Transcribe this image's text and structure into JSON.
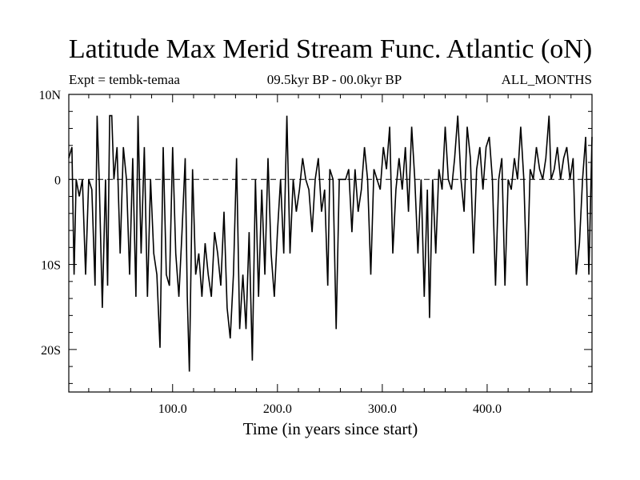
{
  "chart_data": {
    "type": "line",
    "title": "Latitude Max Merid Stream Func. Atlantic (oN)",
    "subtitle_left": "Expt = tembk-temaa",
    "subtitle_center": "09.5kyr BP - 00.0kyr BP",
    "subtitle_right": "ALL_MONTHS",
    "xlabel": "Time (in years since start)",
    "ylabel": "",
    "xlim": [
      1,
      500
    ],
    "ylim": [
      -25,
      10
    ],
    "xticks": [
      {
        "value": 100,
        "label": "100.0"
      },
      {
        "value": 200,
        "label": "200.0"
      },
      {
        "value": 300,
        "label": "300.0"
      },
      {
        "value": 400,
        "label": "400.0"
      }
    ],
    "yticks": [
      {
        "value": 10,
        "label": "10N"
      },
      {
        "value": 0,
        "label": "0"
      },
      {
        "value": -10,
        "label": "10S"
      },
      {
        "value": -20,
        "label": "20S"
      }
    ],
    "reference_line": {
      "value": 0,
      "style": "dashed"
    },
    "series": [
      {
        "name": "latitude_max",
        "x": [
          1,
          4,
          6,
          8,
          11,
          14,
          17,
          20,
          23,
          26,
          28,
          30,
          33,
          36,
          38,
          40,
          42,
          44,
          47,
          50,
          53,
          56,
          59,
          62,
          65,
          67,
          70,
          73,
          76,
          79,
          82,
          85,
          88,
          91,
          94,
          97,
          100,
          103,
          106,
          109,
          112,
          114,
          116,
          119,
          122,
          125,
          128,
          131,
          134,
          137,
          140,
          143,
          146,
          149,
          152,
          155,
          158,
          161,
          164,
          167,
          170,
          173,
          176,
          179,
          182,
          185,
          188,
          191,
          194,
          197,
          200,
          203,
          206,
          209,
          212,
          215,
          218,
          221,
          224,
          227,
          230,
          233,
          236,
          239,
          242,
          245,
          248,
          250,
          253,
          256,
          259,
          262,
          265,
          268,
          271,
          274,
          277,
          280,
          283,
          286,
          289,
          292,
          295,
          298,
          301,
          304,
          307,
          310,
          313,
          316,
          319,
          322,
          325,
          328,
          331,
          334,
          337,
          340,
          343,
          345,
          348,
          351,
          354,
          357,
          360,
          363,
          366,
          369,
          372,
          375,
          378,
          381,
          384,
          387,
          390,
          393,
          396,
          399,
          402,
          405,
          408,
          411,
          414,
          417,
          420,
          423,
          426,
          429,
          432,
          435,
          438,
          441,
          444,
          447,
          450,
          453,
          456,
          459,
          461,
          464,
          467,
          470,
          473,
          476,
          479,
          482,
          485,
          488,
          491,
          494,
          497,
          500
        ],
        "y": [
          2.5,
          3.8,
          -11.2,
          0,
          -2,
          0,
          -11.2,
          0,
          -1.2,
          -12.5,
          7.5,
          0,
          -15.1,
          0,
          -12.5,
          7.5,
          7.5,
          0,
          3.8,
          -8.7,
          3.8,
          0,
          -11.2,
          2.5,
          -13.8,
          7.5,
          -8.7,
          3.8,
          -13.8,
          0,
          -8.7,
          -11.2,
          -19.8,
          3.8,
          -11.2,
          -12.5,
          3.8,
          -8.7,
          -13.8,
          -6.2,
          2.5,
          -13.8,
          -22.6,
          1.2,
          -11.2,
          -8.7,
          -13.8,
          -7.5,
          -11.2,
          -13.8,
          -6.2,
          -8.7,
          -12.5,
          -3.8,
          -15.1,
          -18.7,
          -11.2,
          2.5,
          -17.6,
          -11.2,
          -17.6,
          -6.2,
          -21.3,
          0,
          -13.8,
          -1.2,
          -11.2,
          2.5,
          -8.7,
          -13.8,
          -6.2,
          0,
          -8.7,
          7.5,
          -8.7,
          0,
          -3.8,
          -1.2,
          2.5,
          0,
          -1.2,
          -6.2,
          0,
          2.5,
          -3.8,
          -1.2,
          -12.5,
          1.2,
          0,
          -17.6,
          0,
          0,
          0,
          1.2,
          -6.2,
          1.2,
          -3.8,
          -1.2,
          3.8,
          0,
          -11.2,
          1.2,
          0,
          -1.2,
          3.8,
          1.2,
          6.2,
          -8.7,
          -1.2,
          2.5,
          -1.2,
          3.8,
          -3.8,
          6.2,
          0,
          -8.7,
          0,
          -13.8,
          -1.2,
          -16.3,
          0,
          -8.7,
          1.2,
          -1.2,
          6.2,
          0,
          -1.2,
          2.5,
          7.5,
          0,
          -3.8,
          6.2,
          2.5,
          -8.7,
          1.2,
          3.8,
          -1.2,
          3.8,
          5.0,
          0,
          -12.5,
          0,
          2.5,
          -12.5,
          0,
          -1.2,
          2.5,
          0,
          6.2,
          0,
          -12.5,
          1.2,
          0,
          3.8,
          1.2,
          0,
          2.5,
          7.5,
          0,
          1.2,
          3.8,
          0,
          2.5,
          3.8,
          0,
          2.5,
          -11.2,
          -7.5,
          0,
          5.0,
          -11.2,
          5.0
        ]
      }
    ]
  }
}
